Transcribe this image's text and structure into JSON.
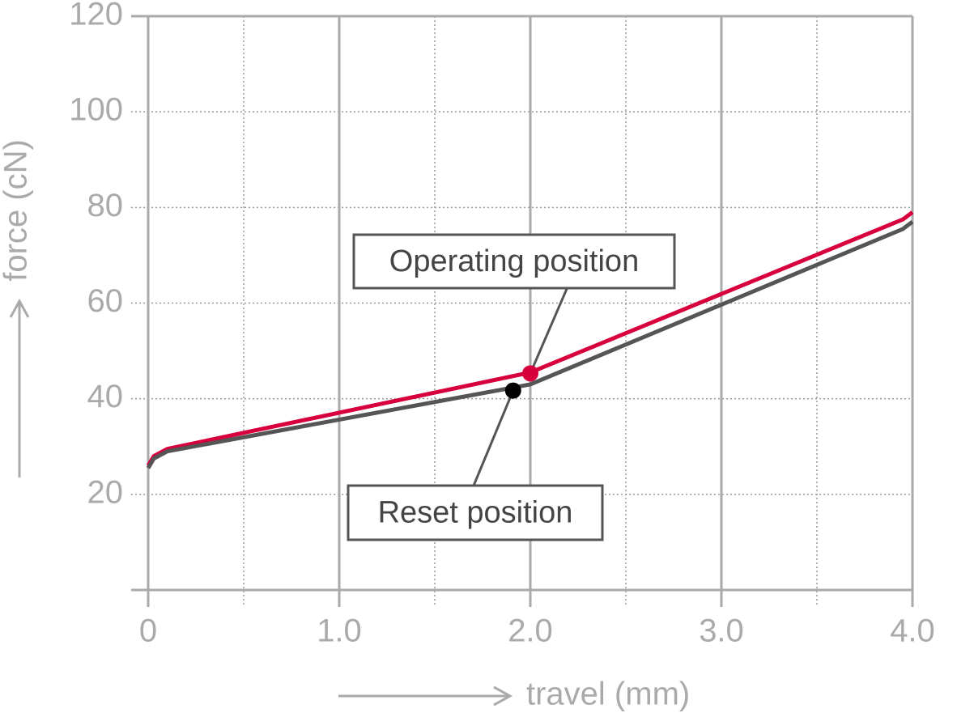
{
  "chart_data": {
    "type": "line",
    "xlabel": "travel (mm)",
    "ylabel": "force (cN)",
    "x": [
      0,
      0.03,
      0.1,
      2.0,
      3.95,
      4.0
    ],
    "series": [
      {
        "color": "#d8003c",
        "values": [
          26,
          28,
          29.5,
          45.5,
          77.5,
          79
        ]
      },
      {
        "color": "#555555",
        "values": [
          25.5,
          27.5,
          29,
          43,
          75.5,
          77
        ]
      }
    ],
    "xlim": [
      0,
      4
    ],
    "ylim": [
      0,
      120
    ],
    "xticks": [
      0,
      {
        "value": 1,
        "label": "1.0"
      },
      {
        "value": 2,
        "label": "2.0"
      },
      {
        "value": 3,
        "label": "3.0"
      },
      {
        "value": 4,
        "label": "4.0"
      }
    ],
    "xminorticks": [
      0.5,
      1.5,
      2.5,
      3.5
    ],
    "yticks": [
      20,
      40,
      60,
      80,
      100,
      120
    ],
    "grid": true,
    "annotations": [
      {
        "text": "Operating position",
        "x": 2.0,
        "y": 45.3,
        "color": "#d8003c"
      },
      {
        "text": "Reset position",
        "x": 1.91,
        "y": 41.7,
        "color": "#000000"
      }
    ]
  }
}
